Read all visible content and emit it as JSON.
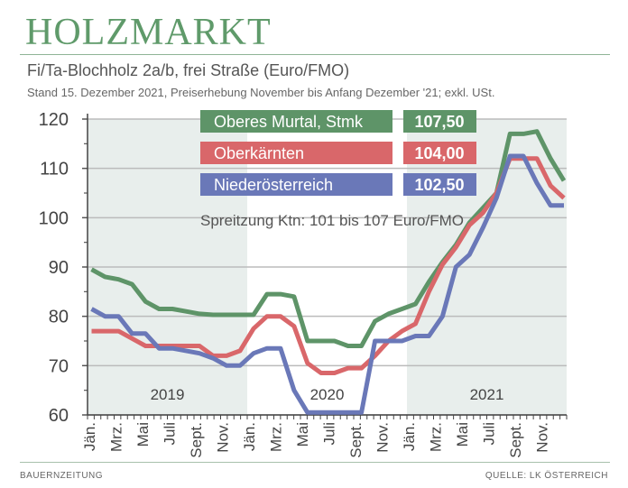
{
  "header": {
    "title": "HOLZMARKT",
    "subtitle": "Fi/Ta-Blochholz 2a/b, frei Straße (Euro/FMO)",
    "note": "Stand 15. Dezember 2021, Preiserhebung November bis Anfang Dezember '21; exkl. USt."
  },
  "footer": {
    "left": "BAUERNZEITUNG",
    "right": "QUELLE: LK ÖSTERREICH"
  },
  "chart_data": {
    "type": "line",
    "title": "Fi/Ta-Blochholz 2a/b, frei Straße (Euro/FMO)",
    "ylim": [
      60,
      120
    ],
    "yticks": [
      60,
      70,
      80,
      90,
      100,
      110,
      120
    ],
    "grid": true,
    "legend_position": "top",
    "annotation": "Spreitzung Ktn: 101 bis 107 Euro/FMO",
    "years": [
      "2019",
      "2020",
      "2021"
    ],
    "month_labels": [
      "Jän.",
      "Mrz.",
      "Mai",
      "Juli",
      "Sept.",
      "Nov."
    ],
    "x": [
      "2019-01",
      "2019-02",
      "2019-03",
      "2019-04",
      "2019-05",
      "2019-06",
      "2019-07",
      "2019-08",
      "2019-09",
      "2019-10",
      "2019-11",
      "2019-12",
      "2020-01",
      "2020-02",
      "2020-03",
      "2020-04",
      "2020-05",
      "2020-06",
      "2020-07",
      "2020-08",
      "2020-09",
      "2020-10",
      "2020-11",
      "2020-12",
      "2021-01",
      "2021-02",
      "2021-03",
      "2021-04",
      "2021-05",
      "2021-06",
      "2021-07",
      "2021-08",
      "2021-09",
      "2021-10",
      "2021-11",
      "2021-12"
    ],
    "series": [
      {
        "name": "Oberes Murtal, Stmk",
        "latest": "107,50",
        "color": "#5e9468",
        "values": [
          89.5,
          88,
          87.5,
          86.5,
          83,
          81.5,
          81.5,
          81,
          80.5,
          80.3,
          80.3,
          80.3,
          80.3,
          84.5,
          84.5,
          84,
          75,
          75,
          75,
          74,
          74,
          79,
          80.5,
          81.5,
          82.5,
          87,
          91,
          94.5,
          99,
          102,
          105,
          117,
          117,
          117.5,
          112,
          107.5
        ]
      },
      {
        "name": "Oberkärnten",
        "latest": "104,00",
        "color": "#d9676a",
        "values": [
          77,
          77,
          77,
          75.5,
          74,
          74,
          74,
          74,
          74,
          72,
          72,
          73,
          77.5,
          80,
          80,
          78,
          70.5,
          68.5,
          68.5,
          69.5,
          69.5,
          72,
          75,
          77,
          78.5,
          85,
          90.5,
          94,
          98.5,
          101,
          105,
          112,
          112,
          112,
          106.5,
          104
        ]
      },
      {
        "name": "Niederösterreich",
        "latest": "102,50",
        "color": "#6a78b8",
        "values": [
          81.5,
          80,
          80,
          76.5,
          76.5,
          73.5,
          73.5,
          73,
          72.5,
          71.5,
          70,
          70,
          72.5,
          73.5,
          73.5,
          65,
          60.5,
          60.5,
          60.5,
          60.5,
          60.5,
          75,
          75,
          75,
          76,
          76,
          80,
          90,
          92.5,
          98,
          104,
          112.5,
          112.5,
          107,
          102.5,
          102.5
        ]
      }
    ]
  }
}
